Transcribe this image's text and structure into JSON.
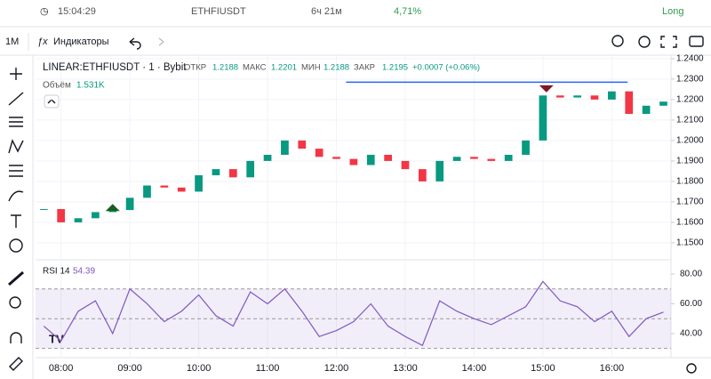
{
  "header": {
    "time": "15:04:29",
    "symbol": "ETHFIUSDT",
    "duration": "6ч 21м",
    "change": "4,71%",
    "side": "Long"
  },
  "toolbar": {
    "interval": "1M",
    "indicators": "Индикаторы"
  },
  "chart_data": [
    {
      "type": "candlestick",
      "title": "LINEAR:ETHFIUSDT · 1 · Bybit",
      "legend_items": [
        {
          "label": "ОТКР",
          "value": "1.2188"
        },
        {
          "label": "МАКС",
          "value": "1.2201"
        },
        {
          "label": "МИН",
          "value": "1.2188"
        },
        {
          "label": "ЗАКР",
          "value": "1.2195"
        }
      ],
      "change": "+0.0007 (+0.06%)",
      "volume_label": "Объём",
      "volume_value": "1.531K",
      "up_color": "#089981",
      "down_color": "#f23645",
      "x": [
        7.75,
        8,
        8.25,
        8.5,
        8.75,
        9,
        9.25,
        9.5,
        9.75,
        10,
        10.25,
        10.5,
        10.75,
        11,
        11.25,
        11.5,
        11.75,
        12,
        12.25,
        12.5,
        12.75,
        13,
        13.25,
        13.5,
        13.75,
        14,
        14.25,
        14.5,
        14.75,
        15,
        15.25,
        15.5,
        15.75,
        16,
        16.25,
        16.5,
        16.75
      ],
      "values": [
        1.1665,
        1.16,
        1.162,
        1.165,
        1.166,
        1.172,
        1.178,
        1.177,
        1.175,
        1.183,
        1.186,
        1.182,
        1.19,
        1.193,
        1.2,
        1.196,
        1.192,
        1.191,
        1.188,
        1.193,
        1.19,
        1.186,
        1.18,
        1.19,
        1.192,
        1.191,
        1.19,
        1.193,
        1.2,
        1.222,
        1.221,
        1.222,
        1.22,
        1.224,
        1.213,
        1.217,
        1.219
      ],
      "xlim": [
        7.63,
        16.86
      ],
      "ylim": [
        1.1417,
        1.2417
      ],
      "xticks": [
        {
          "value": 8,
          "label": "08:00"
        },
        {
          "value": 9,
          "label": "09:00"
        },
        {
          "value": 10,
          "label": "10:00"
        },
        {
          "value": 11,
          "label": "11:00"
        },
        {
          "value": 12,
          "label": "12:00"
        },
        {
          "value": 13,
          "label": "13:00"
        },
        {
          "value": 14,
          "label": "14:00"
        },
        {
          "value": 15,
          "label": "15:00"
        },
        {
          "value": 16,
          "label": "16:00"
        }
      ],
      "yticks": [
        {
          "value": 1.24,
          "label": "1.2400"
        },
        {
          "value": 1.23,
          "label": "1.2300"
        },
        {
          "value": 1.22,
          "label": "1.2200"
        },
        {
          "value": 1.21,
          "label": "1.2100"
        },
        {
          "value": 1.2,
          "label": "1.2000"
        },
        {
          "value": 1.19,
          "label": "1.1900"
        },
        {
          "value": 1.18,
          "label": "1.1800"
        },
        {
          "value": 1.17,
          "label": "1.1700"
        },
        {
          "value": 1.16,
          "label": "1.1600"
        },
        {
          "value": 1.15,
          "label": "1.1500"
        }
      ],
      "hline": {
        "value": 1.2285,
        "x": [
          12.14,
          16.23
        ],
        "color": "#2962ff"
      },
      "markers": [
        {
          "x": 8.75,
          "value": 1.1655,
          "direction": "up",
          "color": "#1b5e20"
        },
        {
          "x": 15.05,
          "value": 1.2235,
          "direction": "down",
          "color": "#801922"
        }
      ]
    },
    {
      "type": "line",
      "title": "RSI 14",
      "title_value": "54.39",
      "color": "#7e57c2",
      "x": [
        7.75,
        8,
        8.25,
        8.5,
        8.75,
        9,
        9.25,
        9.5,
        9.75,
        10,
        10.25,
        10.5,
        10.75,
        11,
        11.25,
        11.5,
        11.75,
        12,
        12.25,
        12.5,
        12.75,
        13,
        13.25,
        13.5,
        13.75,
        14,
        14.25,
        14.5,
        14.75,
        15,
        15.25,
        15.5,
        15.75,
        16,
        16.25,
        16.5,
        16.75
      ],
      "values": [
        45,
        35,
        55,
        62,
        40,
        70,
        60,
        48,
        55,
        66,
        52,
        45,
        68,
        60,
        70,
        55,
        38,
        42,
        48,
        60,
        45,
        38,
        32,
        62,
        55,
        50,
        46,
        52,
        58,
        75,
        62,
        58,
        48,
        55,
        38,
        50,
        54.39
      ],
      "xlim": [
        7.63,
        16.86
      ],
      "ylim": [
        25,
        87.8
      ],
      "yticks": [
        {
          "value": 80,
          "label": "80.00"
        },
        {
          "value": 60,
          "label": "60.00"
        },
        {
          "value": 40,
          "label": "40.00"
        }
      ],
      "levels": [
        30,
        50,
        70
      ]
    }
  ]
}
